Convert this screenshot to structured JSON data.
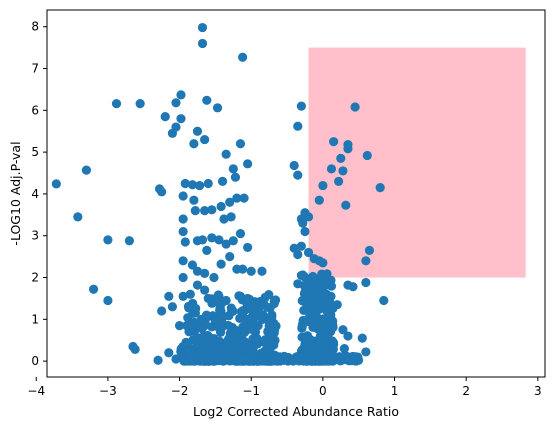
{
  "chart_data": {
    "type": "scatter",
    "title": "",
    "xlabel": "Log2 Corrected Abundance Ratio",
    "ylabel": "-LOG10 Adj.P-val",
    "xlim": [
      -3.85,
      3.1
    ],
    "ylim": [
      -0.38,
      8.4
    ],
    "x_ticks": [
      -4,
      -3,
      -2,
      -1,
      0,
      1,
      2,
      3
    ],
    "y_ticks": [
      0,
      1,
      2,
      3,
      4,
      5,
      6,
      7,
      8
    ],
    "x_tick_labels": [
      "−4",
      "−3",
      "−2",
      "−1",
      "0",
      "1",
      "2",
      "3"
    ],
    "y_tick_labels": [
      "0",
      "1",
      "2",
      "3",
      "4",
      "5",
      "6",
      "7",
      "8"
    ],
    "grid": false,
    "colors": {
      "points": "#1f77b4",
      "highlight": "#ffc0cb",
      "axes": "#000000"
    },
    "highlight_region": {
      "x": [
        -0.2,
        2.83
      ],
      "y": [
        2.0,
        7.5
      ]
    },
    "series": [
      {
        "points": [
          [
            -1.68,
            7.98
          ],
          [
            -1.68,
            7.6
          ],
          [
            -1.12,
            7.27
          ],
          [
            -1.98,
            6.37
          ],
          [
            -2.88,
            6.16
          ],
          [
            -2.55,
            6.16
          ],
          [
            -1.62,
            6.24
          ],
          [
            -1.47,
            6.06
          ],
          [
            -2.05,
            6.18
          ],
          [
            -0.3,
            6.1
          ],
          [
            0.45,
            6.08
          ],
          [
            -2.2,
            5.85
          ],
          [
            -2.05,
            5.6
          ],
          [
            -1.98,
            5.8
          ],
          [
            -1.75,
            5.5
          ],
          [
            -1.8,
            5.2
          ],
          [
            -1.65,
            5.3
          ],
          [
            -2.1,
            5.45
          ],
          [
            -1.15,
            5.2
          ],
          [
            -0.35,
            5.62
          ],
          [
            -1.35,
            4.95
          ],
          [
            -1.05,
            4.72
          ],
          [
            -3.3,
            4.57
          ],
          [
            -3.72,
            4.24
          ],
          [
            -2.28,
            4.12
          ],
          [
            -2.25,
            4.05
          ],
          [
            -1.92,
            4.25
          ],
          [
            -1.82,
            4.22
          ],
          [
            -1.72,
            4.2
          ],
          [
            -1.6,
            4.25
          ],
          [
            -1.25,
            4.6
          ],
          [
            -1.22,
            4.4
          ],
          [
            -1.4,
            4.3
          ],
          [
            -0.4,
            4.68
          ],
          [
            -0.35,
            4.45
          ],
          [
            0.15,
            5.25
          ],
          [
            0.35,
            5.18
          ],
          [
            0.35,
            5.08
          ],
          [
            0.25,
            4.85
          ],
          [
            0.62,
            4.92
          ],
          [
            0.12,
            4.6
          ],
          [
            0.28,
            4.55
          ],
          [
            0.22,
            4.3
          ],
          [
            0.0,
            4.2
          ],
          [
            0.8,
            4.15
          ],
          [
            0.32,
            3.73
          ],
          [
            -1.95,
            3.95
          ],
          [
            -1.8,
            3.85
          ],
          [
            -1.65,
            3.6
          ],
          [
            -1.55,
            3.62
          ],
          [
            -1.42,
            3.7
          ],
          [
            -1.3,
            3.8
          ],
          [
            -1.2,
            3.9
          ],
          [
            -1.38,
            3.4
          ],
          [
            -1.28,
            3.45
          ],
          [
            -1.1,
            3.9
          ],
          [
            -1.95,
            3.4
          ],
          [
            -1.78,
            3.6
          ],
          [
            -3.42,
            3.45
          ],
          [
            -3.0,
            2.9
          ],
          [
            -2.7,
            2.88
          ],
          [
            -1.95,
            3.1
          ],
          [
            -1.92,
            2.85
          ],
          [
            -1.75,
            2.88
          ],
          [
            -1.68,
            2.9
          ],
          [
            -1.55,
            2.95
          ],
          [
            -1.45,
            2.9
          ],
          [
            -1.35,
            2.8
          ],
          [
            -1.25,
            2.88
          ],
          [
            -1.05,
            2.72
          ],
          [
            -1.62,
            2.65
          ],
          [
            -1.15,
            3.05
          ],
          [
            -0.25,
            3.55
          ],
          [
            -0.3,
            3.4
          ],
          [
            -0.2,
            3.45
          ],
          [
            -0.28,
            3.3
          ],
          [
            -0.25,
            3.1
          ],
          [
            -0.05,
            3.85
          ],
          [
            -0.3,
            2.75
          ],
          [
            -0.4,
            2.7
          ],
          [
            -0.35,
            2.55
          ],
          [
            -0.2,
            2.6
          ],
          [
            -0.12,
            2.45
          ],
          [
            -0.05,
            2.4
          ],
          [
            0.65,
            2.65
          ],
          [
            0.6,
            2.4
          ],
          [
            0.0,
            2.35
          ],
          [
            0.6,
            1.88
          ],
          [
            0.35,
            1.82
          ],
          [
            0.42,
            1.78
          ],
          [
            0.85,
            1.45
          ],
          [
            -1.95,
            2.4
          ],
          [
            -1.82,
            2.3
          ],
          [
            -1.75,
            2.15
          ],
          [
            -1.65,
            2.1
          ],
          [
            -1.52,
            2.0
          ],
          [
            -1.42,
            2.32
          ],
          [
            -1.3,
            2.5
          ],
          [
            -1.2,
            2.2
          ],
          [
            -1.12,
            2.2
          ],
          [
            -1.0,
            2.15
          ],
          [
            -0.85,
            2.15
          ],
          [
            -1.95,
            2.0
          ],
          [
            -3.2,
            1.72
          ],
          [
            -3.0,
            1.45
          ],
          [
            -2.15,
            1.55
          ],
          [
            -2.1,
            1.3
          ],
          [
            -2.25,
            1.2
          ],
          [
            -1.95,
            1.55
          ],
          [
            -1.85,
            1.6
          ],
          [
            -1.75,
            1.82
          ],
          [
            -1.65,
            1.7
          ],
          [
            -1.6,
            1.5
          ],
          [
            -1.45,
            1.55
          ],
          [
            -1.35,
            1.45
          ],
          [
            -1.15,
            1.55
          ],
          [
            -1.05,
            1.5
          ],
          [
            -1.0,
            1.4
          ],
          [
            -0.9,
            1.25
          ],
          [
            -2.0,
            0.85
          ],
          [
            -1.9,
            0.85
          ],
          [
            -1.78,
            0.82
          ],
          [
            -1.65,
            0.85
          ],
          [
            -1.55,
            0.82
          ],
          [
            -1.5,
            0.95
          ],
          [
            -1.4,
            0.9
          ],
          [
            -2.65,
            0.35
          ],
          [
            -2.62,
            0.28
          ],
          [
            -2.15,
            0.2
          ],
          [
            -2.05,
            0.05
          ],
          [
            -2.3,
            0.02
          ],
          [
            -1.85,
            0.3
          ],
          [
            -1.7,
            0.45
          ],
          [
            -0.35,
            1.85
          ],
          [
            -0.3,
            2.05
          ],
          [
            -0.25,
            1.65
          ],
          [
            -0.15,
            1.75
          ],
          [
            0.05,
            1.6
          ],
          [
            0.2,
            1.35
          ],
          [
            -0.1,
            1.2
          ],
          [
            0.1,
            0.9
          ],
          [
            0.28,
            0.75
          ],
          [
            0.35,
            0.6
          ],
          [
            0.15,
            0.4
          ],
          [
            0.3,
            0.3
          ],
          [
            0.55,
            0.55
          ],
          [
            0.6,
            0.22
          ],
          [
            0.45,
            0.05
          ],
          [
            0.25,
            0.1
          ]
        ]
      }
    ]
  }
}
